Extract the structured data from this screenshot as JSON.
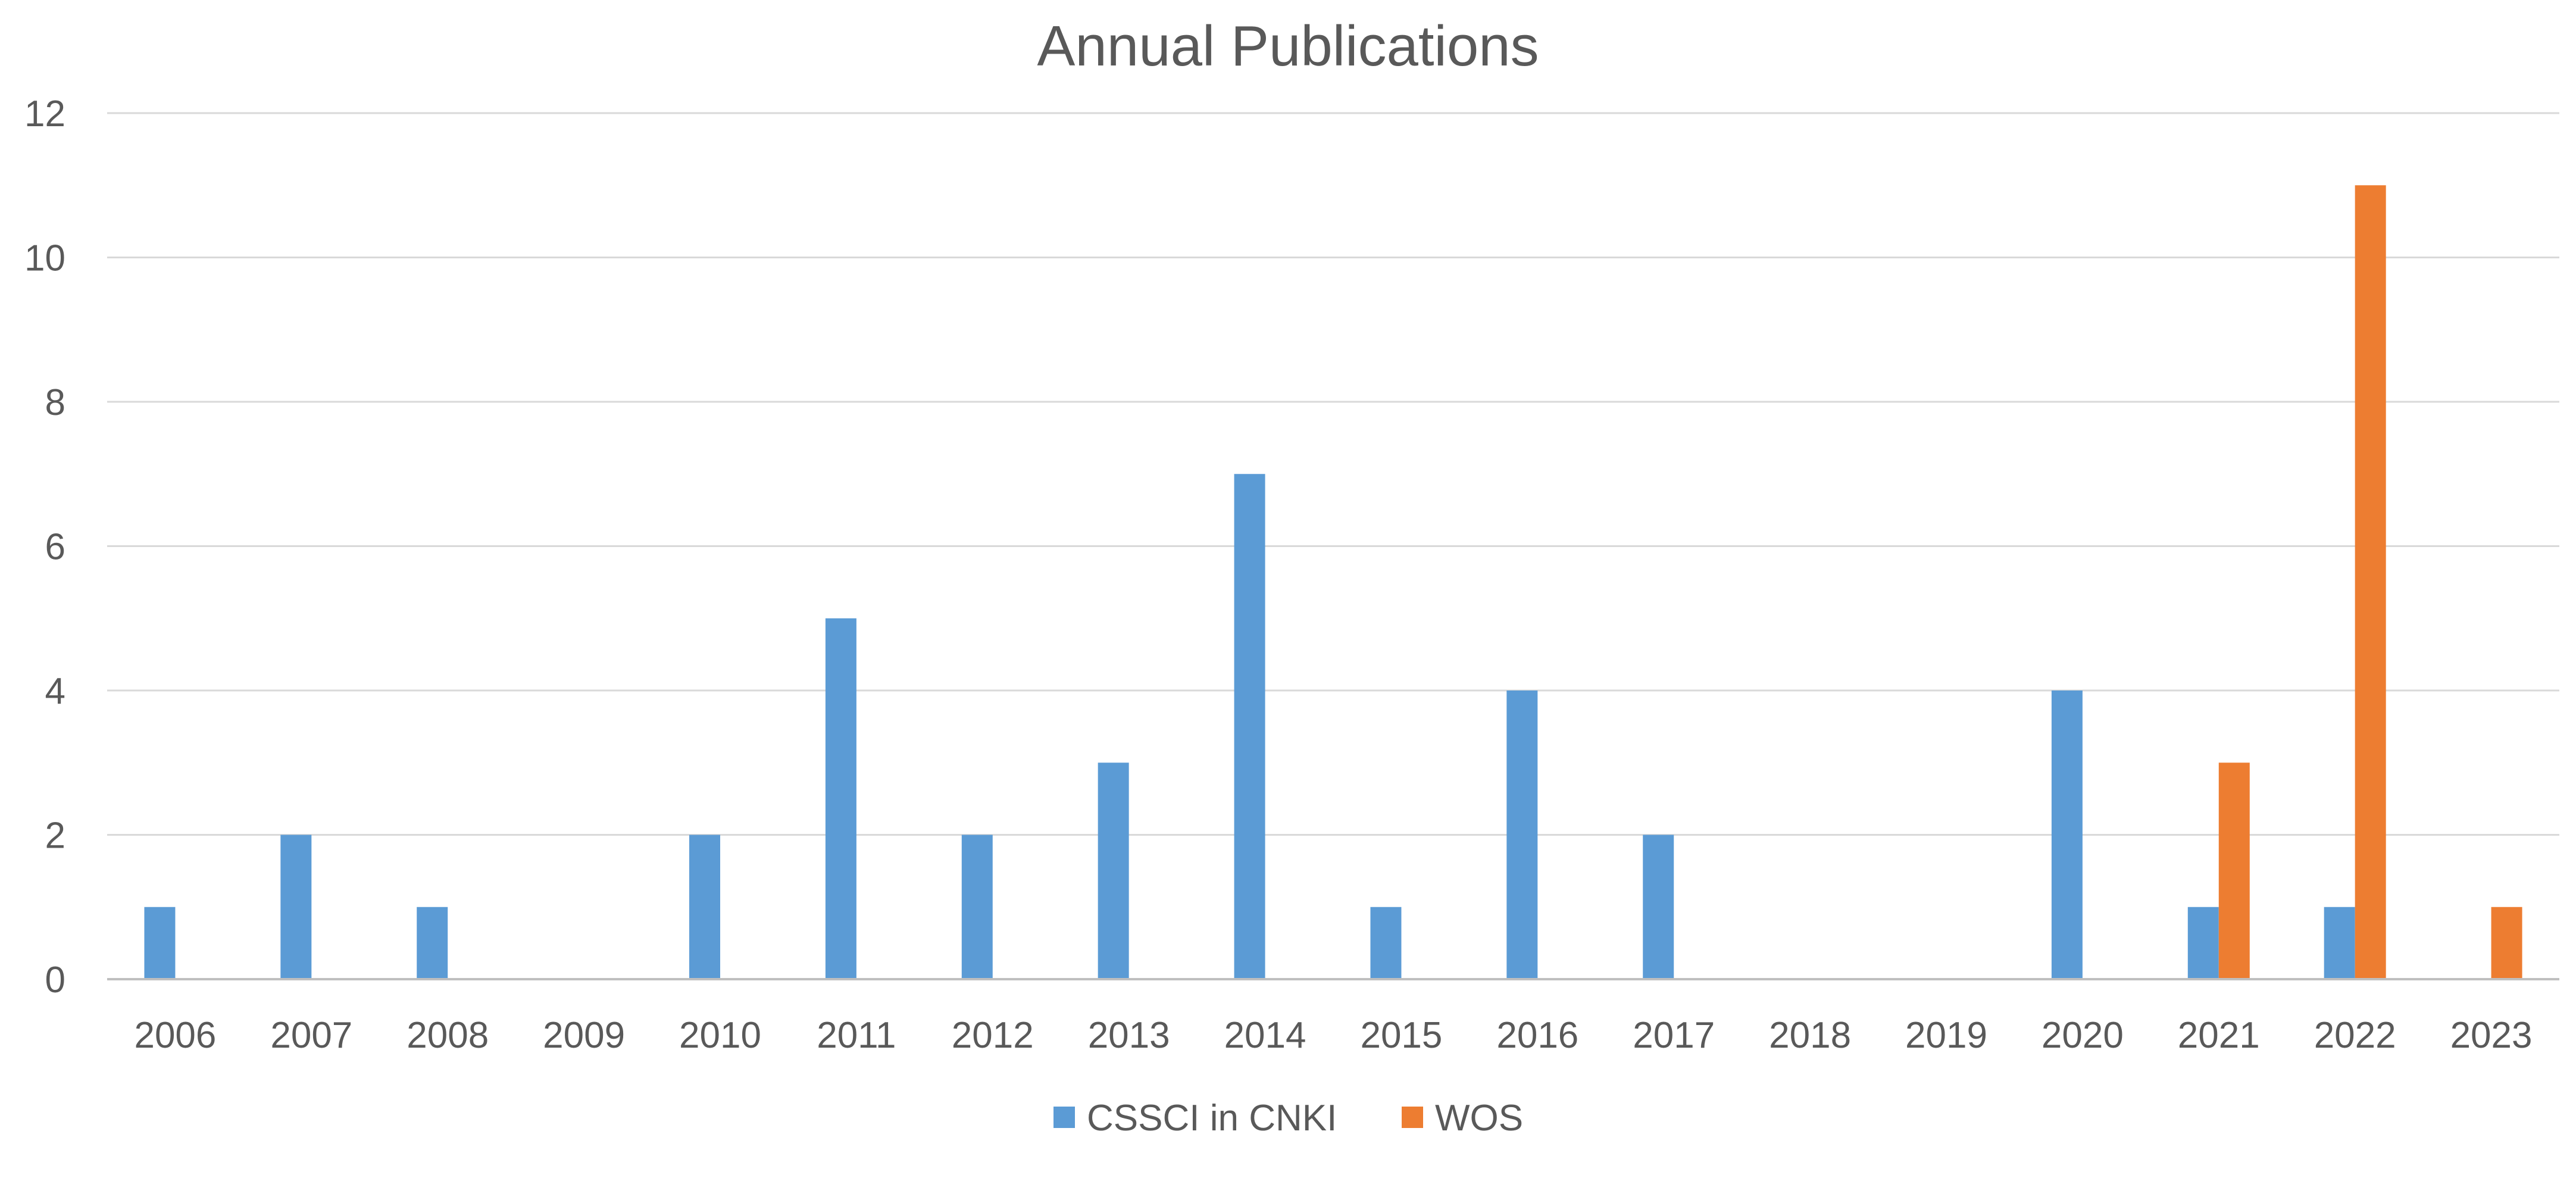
{
  "chart_data": {
    "type": "bar",
    "title": "Annual Publications",
    "xlabel": "",
    "ylabel": "",
    "categories": [
      "2006",
      "2007",
      "2008",
      "2009",
      "2010",
      "2011",
      "2012",
      "2013",
      "2014",
      "2015",
      "2016",
      "2017",
      "2018",
      "2019",
      "2020",
      "2021",
      "2022",
      "2023"
    ],
    "series": [
      {
        "name": "CSSCI in CNKI",
        "color": "#5b9bd5",
        "values": [
          1,
          2,
          1,
          0,
          2,
          5,
          2,
          3,
          7,
          1,
          4,
          2,
          0,
          0,
          4,
          1,
          1,
          0
        ]
      },
      {
        "name": "WOS",
        "color": "#ed7d31",
        "values": [
          0,
          0,
          0,
          0,
          0,
          0,
          0,
          0,
          0,
          0,
          0,
          0,
          0,
          0,
          0,
          3,
          11,
          1
        ]
      }
    ],
    "ylim": [
      0,
      12
    ],
    "yticks": [
      0,
      2,
      4,
      6,
      8,
      10,
      12
    ],
    "grid": true,
    "legend_position": "bottom"
  }
}
